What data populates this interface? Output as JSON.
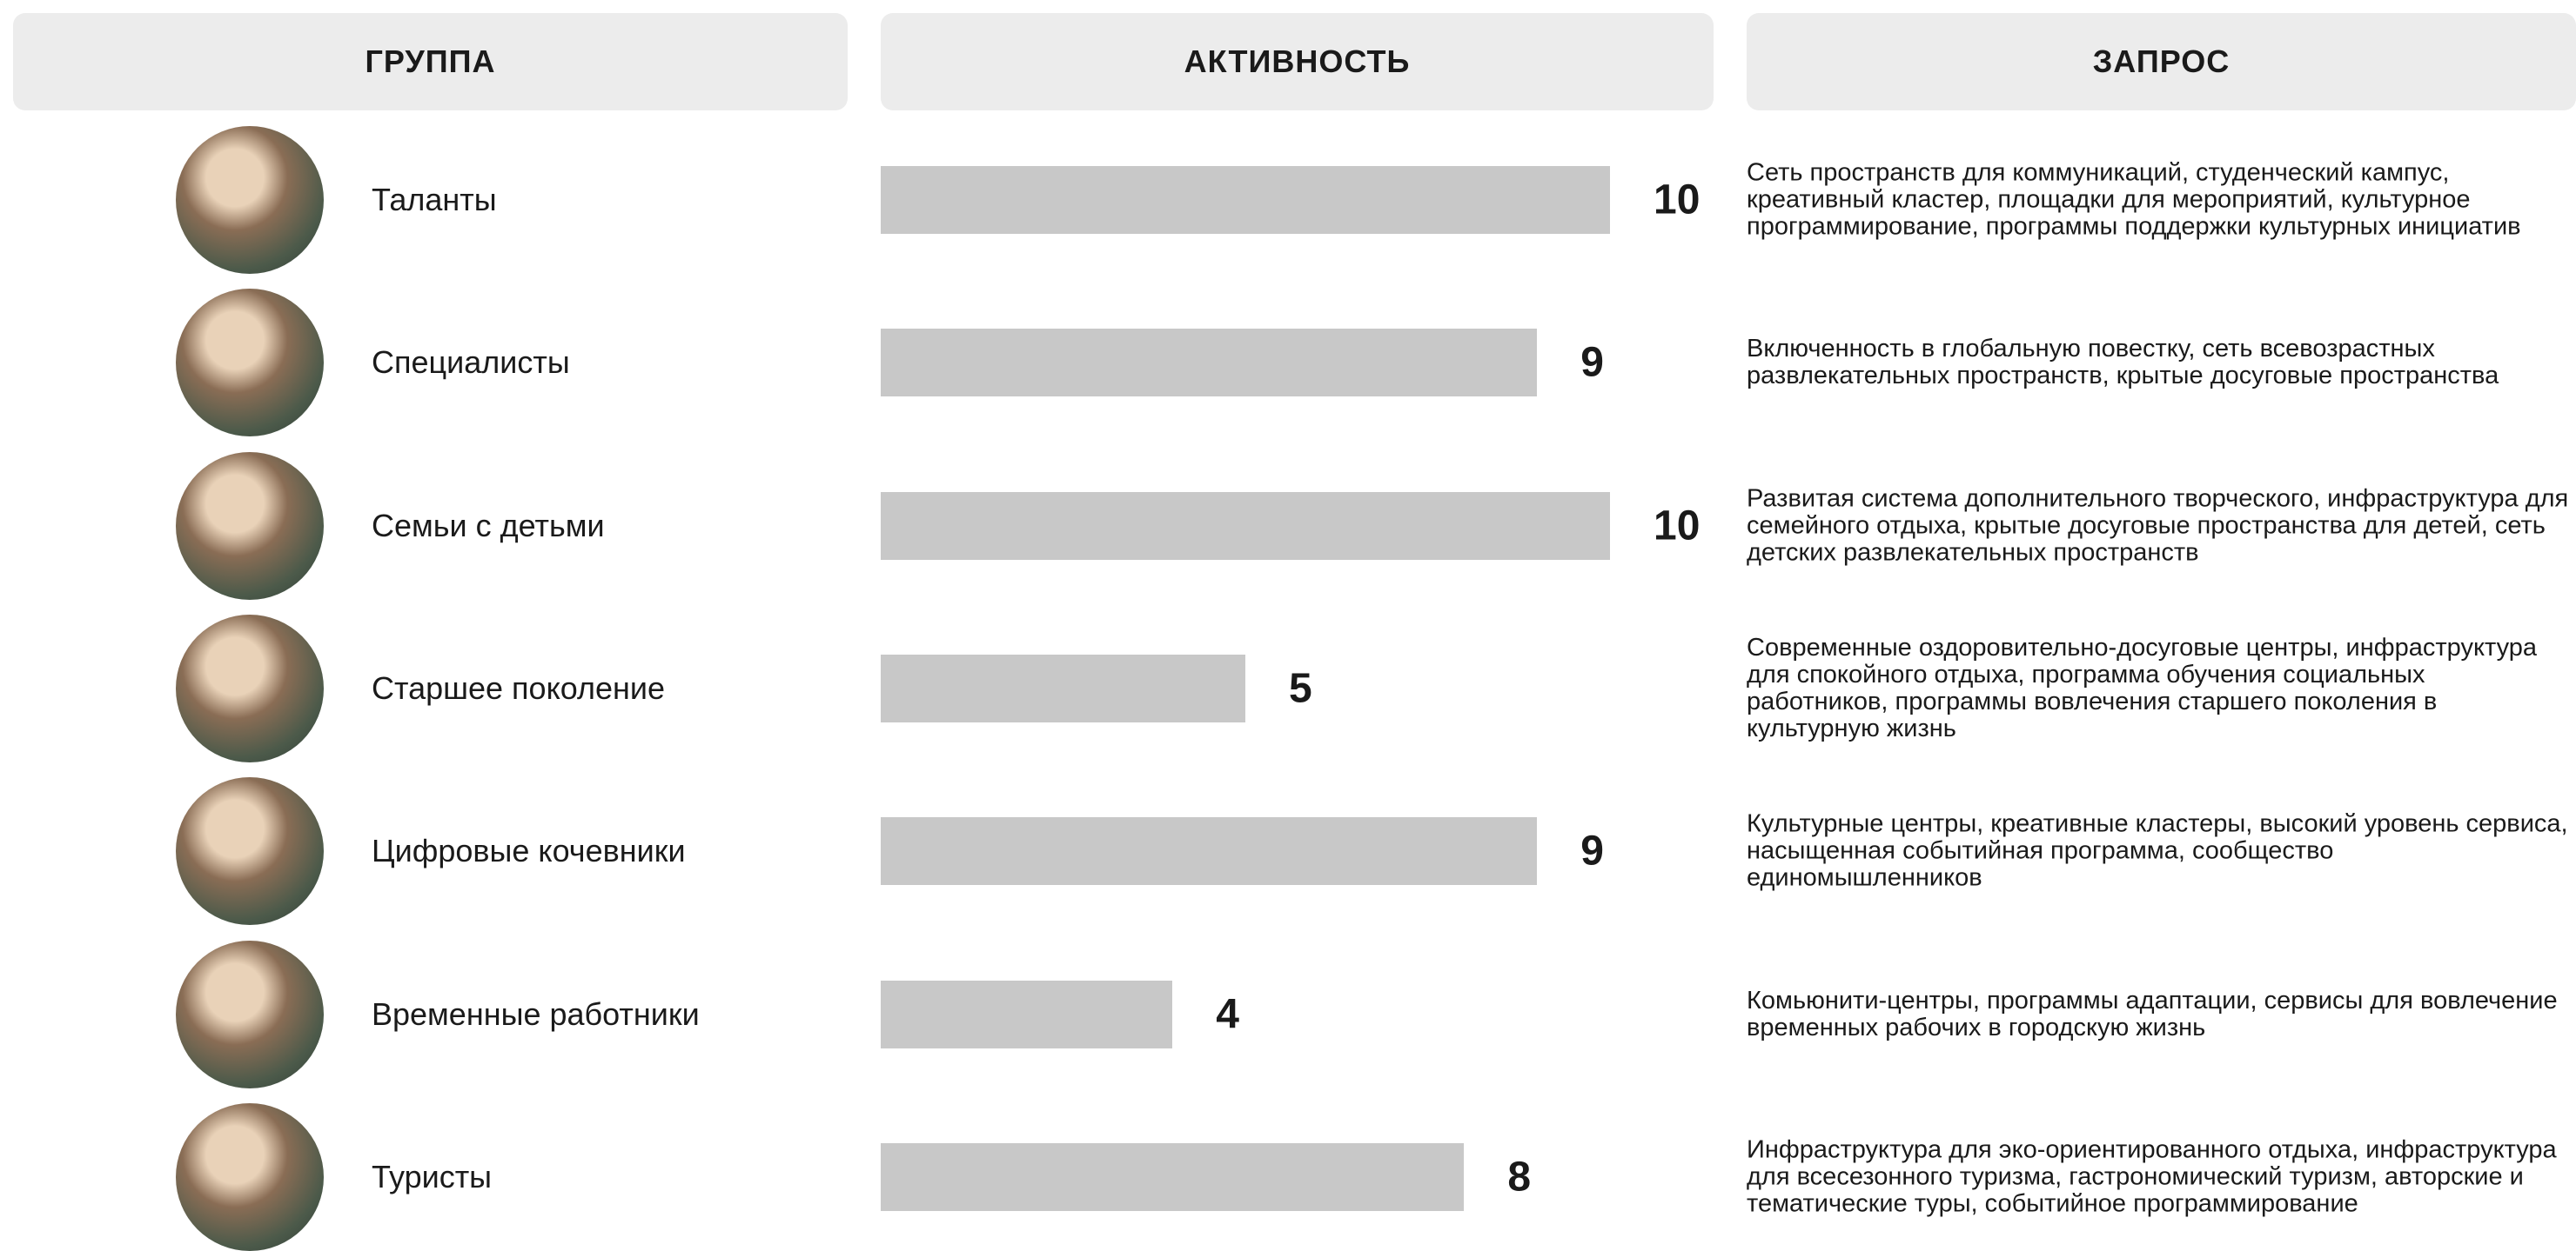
{
  "headers": [
    "ГРУППА",
    "АКТИВНОСТЬ",
    "ЗАПРОС"
  ],
  "rows": [
    {
      "group": "Таланты",
      "activity": 10,
      "request": "Сеть пространств для коммуникаций, студенческий кампус, креативный кластер, площадки для мероприятий, культурное программирование, программы поддержки культурных инициатив"
    },
    {
      "group": "Специалисты",
      "activity": 9,
      "request": "Включенность в глобальную повестку, сеть всевозрастных развлекательных пространств, крытые досуговые пространства"
    },
    {
      "group": "Семьи с детьми",
      "activity": 10,
      "request": "Развитая система дополнительного творческого, инфраструктура для семейного отдыха, крытые досуговые пространства для детей, сеть детских развлекательных пространств"
    },
    {
      "group": "Старшее поколение",
      "activity": 5,
      "request": "Современные оздоровительно-досуговые центры, инфраструктура для спокойного отдыха, программа обучения социальных работников, программы вовлечения старшего поколения в культурную жизнь"
    },
    {
      "group": "Цифровые кочевники",
      "activity": 9,
      "request": "Культурные центры, креативные кластеры, высокий уровень сервиса, насыщенная событийная программа, сообщество единомышленников"
    },
    {
      "group": "Временные работники",
      "activity": 4,
      "request": "Комьюнити-центры, программы адаптации, сервисы для вовлечение временных рабочих в городскую жизнь"
    },
    {
      "group": "Туристы",
      "activity": 8,
      "request": "Инфраструктура для эко-ориентированного отдыха, инфраструктура для всесезонного туризма, гастрономический туризм, авторские и тематические туры, событийное программирование"
    }
  ]
}
